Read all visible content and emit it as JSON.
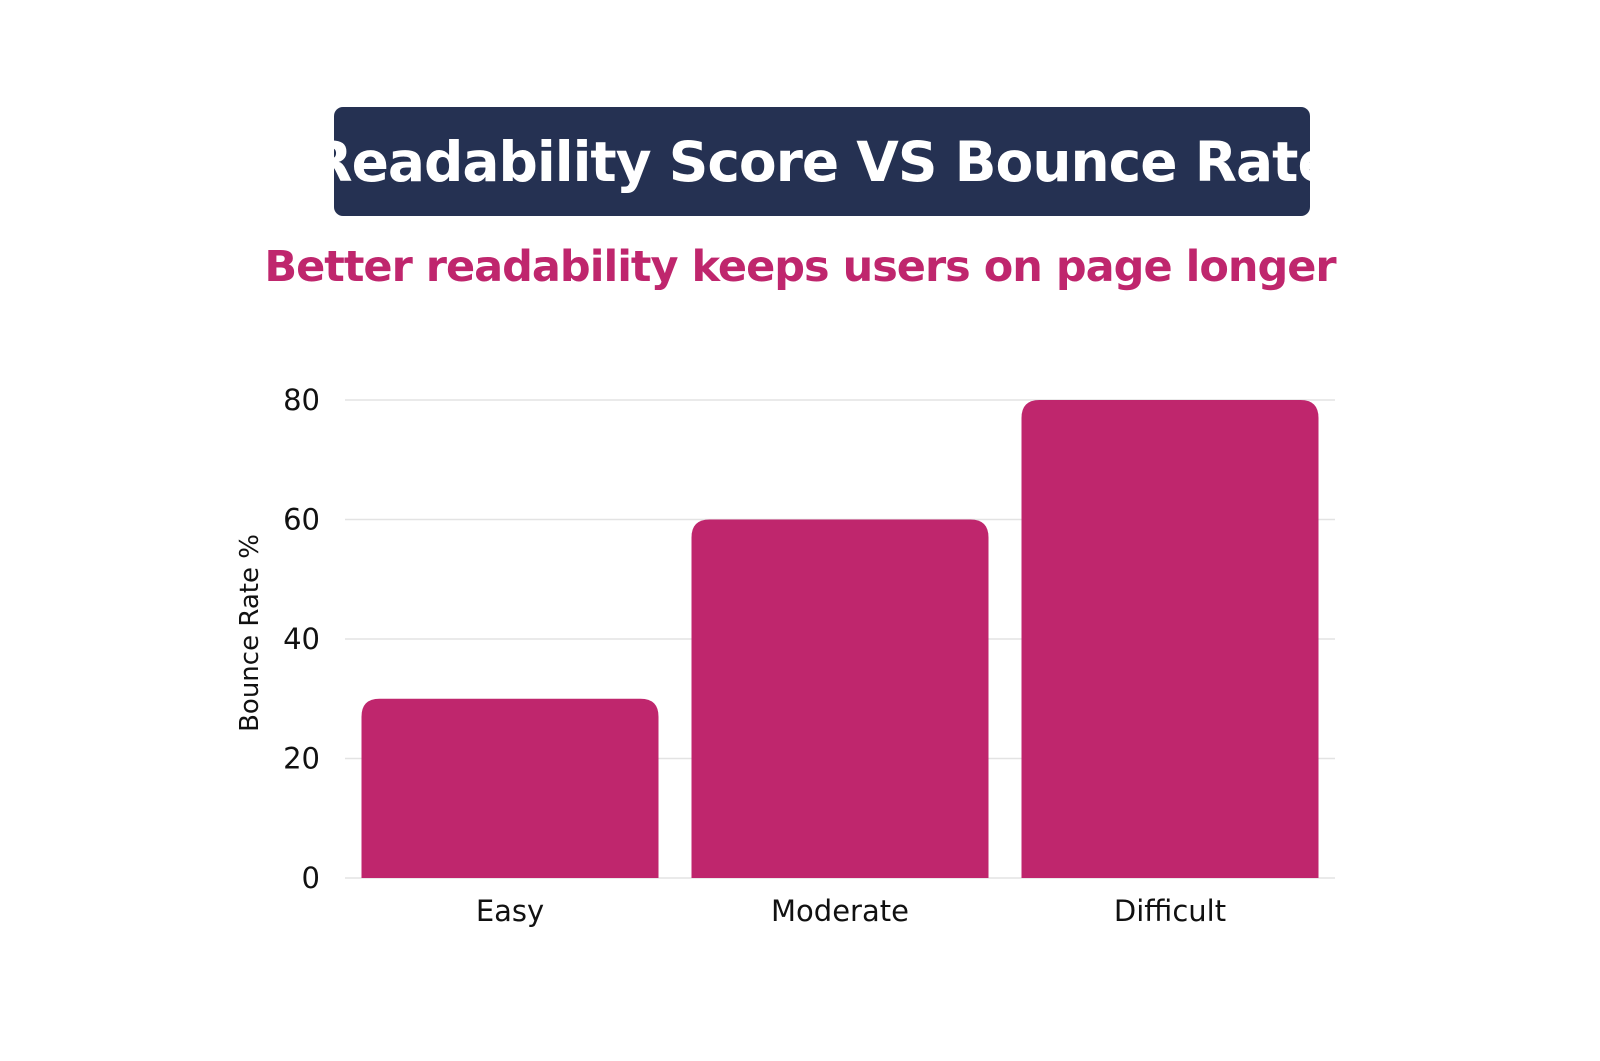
{
  "title": "Readability Score VS Bounce Rate",
  "subtitle": "Better readability keeps users on page longer",
  "colors": {
    "banner": "#253152",
    "title_text": "#ffffff",
    "subtitle": "#bf266d",
    "bar": "#bf266d",
    "grid": "#e3e3e3"
  },
  "chart_data": {
    "type": "bar",
    "categories": [
      "Easy",
      "Moderate",
      "Difficult"
    ],
    "values": [
      30,
      60,
      80
    ],
    "xlabel": "",
    "ylabel": "Bounce Rate %",
    "ylim": [
      0,
      80
    ],
    "yticks": [
      0,
      20,
      40,
      60,
      80
    ],
    "grid": true,
    "legend": "none"
  }
}
